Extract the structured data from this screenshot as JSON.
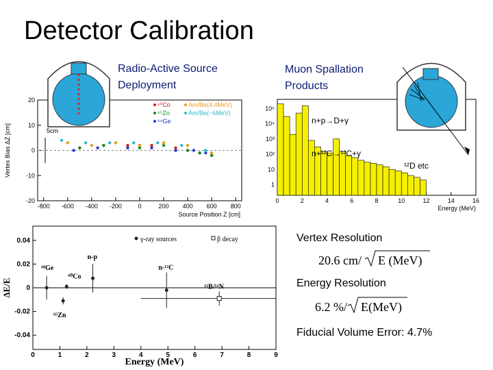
{
  "title": "Detector Calibration",
  "sections": {
    "source_deployment": [
      "Radio-Active Source",
      "Deployment"
    ],
    "muon_spallation": [
      "Muon Spallation",
      "Products"
    ],
    "vertex_label": "Vertex Resolution",
    "vertex_formula": {
      "coefficient": "20.6 cm/",
      "radicand": "E (MeV)"
    },
    "energy_label": "Energy Resolution",
    "energy_formula": {
      "coefficient": "6.2 %/",
      "radicand": "E(MeV)"
    },
    "fiducial": "Fiducial Volume Error: 4.7%"
  },
  "chart_data": [
    {
      "type": "scatter",
      "x_label": "Source Position Z [cm]",
      "y_label": "Vertex Bias ΔZ [cm]",
      "annotations": [
        "5cm"
      ],
      "xlim": [
        -850,
        850
      ],
      "ylim": [
        -20,
        20
      ],
      "xticks": [
        -800,
        -600,
        -400,
        -200,
        0,
        200,
        400,
        600,
        800
      ],
      "yticks": [
        -20,
        -10,
        0,
        10,
        20
      ],
      "series": [
        {
          "name": "⁶⁰Co",
          "color": "#d62020",
          "x": [
            -500,
            -300,
            -100,
            0,
            100,
            300,
            400,
            500,
            600
          ],
          "values": [
            1,
            2,
            2,
            2,
            2,
            1,
            0,
            -1,
            -2
          ]
        },
        {
          "name": "⁶⁵Zn",
          "color": "#1a8a2a",
          "x": [
            -500,
            -300,
            0,
            200,
            300,
            400,
            500,
            600
          ],
          "values": [
            1,
            2,
            1,
            2,
            0,
            0,
            -1,
            -2
          ]
        },
        {
          "name": "⁶⁸Ge",
          "color": "#2a3ad0",
          "x": [
            -550,
            -350,
            -100,
            100,
            300,
            450,
            550
          ],
          "values": [
            0,
            1,
            1,
            1,
            0,
            0,
            -1
          ]
        },
        {
          "name": "Am/Be(4.4MeV)",
          "color": "#e89a20",
          "x": [
            -600,
            -400,
            -200,
            0,
            200,
            400,
            600
          ],
          "values": [
            3,
            2,
            3,
            2,
            3,
            2,
            -1
          ]
        },
        {
          "name": "Am/Be(~6MeV)",
          "color": "#30b8c8",
          "x": [
            -650,
            -450,
            -250,
            -50,
            150,
            350,
            550
          ],
          "values": [
            4,
            3,
            3,
            3,
            3,
            2,
            0
          ]
        }
      ]
    },
    {
      "type": "histogram",
      "x_label": "Energy (MeV)",
      "annotations": [
        "n+p→D+γ",
        "n+¹²C→¹³C+γ",
        "¹²D etc"
      ],
      "log_y": true,
      "color": "#f5f000",
      "xlim": [
        0,
        16
      ],
      "ylim": [
        0.2,
        400000
      ],
      "xticks": [
        0,
        2,
        4,
        6,
        8,
        10,
        12,
        14,
        16
      ],
      "yticks": [
        1,
        10,
        {
          "value": 100,
          "label": "10²"
        },
        {
          "value": 1000,
          "label": "10³"
        },
        {
          "value": 10000,
          "label": "10⁴"
        },
        {
          "value": 100000,
          "label": "10⁵"
        }
      ],
      "bins": [
        0,
        0.5,
        1,
        1.5,
        2,
        2.5,
        3,
        3.5,
        4,
        4.5,
        5,
        5.5,
        6,
        6.5,
        7,
        7.5,
        8,
        8.5,
        9,
        9.5,
        10,
        10.5,
        11,
        11.5,
        12
      ],
      "values": [
        200000,
        30000,
        2000,
        50000,
        150000,
        800,
        300,
        150,
        120,
        1000,
        150,
        80,
        60,
        40,
        30,
        25,
        20,
        15,
        10,
        8,
        6,
        4,
        3,
        2
      ]
    },
    {
      "type": "errorbar",
      "x_label": "Energy (MeV)",
      "y_label": "ΔE/E",
      "xlim": [
        0,
        9
      ],
      "ylim": [
        -0.052,
        0.052
      ],
      "xticks": [
        0,
        1,
        2,
        3,
        4,
        5,
        6,
        7,
        8,
        9
      ],
      "yticks": [
        -0.04,
        -0.02,
        0,
        0.02,
        0.04
      ],
      "series": [
        {
          "name": "γ-ray sources",
          "marker": "filled",
          "color": "#222222",
          "x": [
            0.51,
            1.12,
            1.25,
            2.22,
            4.95
          ],
          "values": [
            0,
            -0.011,
            0.001,
            0.008,
            -0.002
          ],
          "errors": [
            0.01,
            0.003,
            0.002,
            0.012,
            0.015
          ],
          "point_labels": [
            "⁶⁸Ge",
            "⁶⁵Zn",
            "⁶⁰Co",
            "n-p",
            "n-¹²C"
          ]
        },
        {
          "name": "β decay",
          "marker": "open",
          "color": "#222222",
          "x": [
            6.9
          ],
          "values": [
            -0.009
          ],
          "errors": [
            0.006
          ],
          "xerrors": [
            2.9
          ],
          "point_labels": [
            "¹²B/¹²N"
          ]
        }
      ]
    }
  ]
}
